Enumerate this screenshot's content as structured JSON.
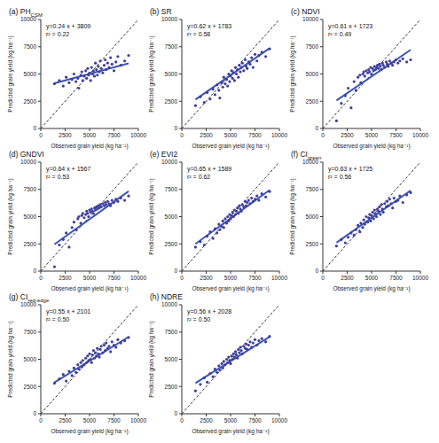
{
  "chart_data": [
    {
      "type": "scatter",
      "title": "(a) PH",
      "title_subscript": "CSM",
      "x_label": "Observed grain yield (kg ha⁻¹)",
      "y_label": "Predicted grain yield (kg ha⁻¹)",
      "annotations": [
        "y=0.24 x + 3809",
        "r² = 0.22"
      ],
      "fit": {
        "slope": 0.24,
        "intercept": 3809
      },
      "color": "#3f3f9e",
      "marker": "circle",
      "grid": false,
      "xlim": [
        0,
        10000
      ],
      "ylim": [
        0,
        10000
      ],
      "xticks": [
        0,
        2500,
        5000,
        7500,
        10000
      ],
      "yticks": [
        0,
        2500,
        5000,
        7500,
        10000
      ],
      "x": [
        1400,
        1900,
        2300,
        2600,
        2900,
        3200,
        3400,
        3600,
        3800,
        3900,
        4100,
        4200,
        4300,
        4450,
        4600,
        4700,
        4800,
        4900,
        5000,
        5100,
        5200,
        5300,
        5400,
        5500,
        5600,
        5700,
        5800,
        5900,
        6000,
        6100,
        6200,
        6350,
        6500,
        6600,
        6700,
        6850,
        7000,
        7150,
        7300,
        7500,
        7700,
        7900,
        8200,
        8600,
        9000
      ],
      "values": [
        4100,
        4400,
        3900,
        4700,
        4200,
        4500,
        5000,
        4300,
        4600,
        3700,
        4900,
        5200,
        4400,
        4800,
        5300,
        4600,
        5500,
        4900,
        5100,
        4400,
        5600,
        5000,
        5300,
        4800,
        6000,
        5400,
        4900,
        5700,
        5200,
        6200,
        5500,
        5100,
        5800,
        6300,
        5400,
        6000,
        5600,
        6500,
        5900,
        5300,
        6100,
        6600,
        5800,
        6200,
        6700
      ]
    },
    {
      "type": "scatter",
      "title": "(b) SR",
      "x_label": "Observed grain yield (kg ha⁻¹)",
      "y_label": "Predicted grain yield (kg ha⁻¹)",
      "annotations": [
        "y=0.62 x + 1783",
        "r² = 0.58"
      ],
      "fit": {
        "slope": 0.62,
        "intercept": 1783
      },
      "color": "#3f3f9e",
      "marker": "circle",
      "grid": false,
      "xlim": [
        0,
        10000
      ],
      "ylim": [
        0,
        10000
      ],
      "xticks": [
        0,
        2500,
        5000,
        7500,
        10000
      ],
      "yticks": [
        0,
        2500,
        5000,
        7500,
        10000
      ],
      "x": [
        1400,
        1900,
        2300,
        2600,
        2900,
        3200,
        3400,
        3600,
        3800,
        3900,
        4100,
        4200,
        4300,
        4450,
        4600,
        4700,
        4800,
        4900,
        5000,
        5100,
        5200,
        5300,
        5400,
        5500,
        5600,
        5700,
        5800,
        5900,
        6000,
        6100,
        6200,
        6350,
        6500,
        6600,
        6700,
        6850,
        7000,
        7150,
        7300,
        7500,
        7700,
        7900,
        8200,
        8600,
        9000
      ],
      "values": [
        2100,
        2900,
        2400,
        3300,
        2700,
        3600,
        3100,
        4000,
        3500,
        2800,
        4200,
        3800,
        4700,
        4100,
        4500,
        3900,
        5000,
        4300,
        4800,
        5300,
        4600,
        5100,
        4400,
        5600,
        5000,
        5400,
        4700,
        5800,
        5200,
        5600,
        6000,
        5300,
        6300,
        5700,
        5500,
        6100,
        5900,
        6500,
        5600,
        6800,
        6200,
        6700,
        7000,
        6600,
        7300
      ]
    },
    {
      "type": "scatter",
      "title": "(c) NDVI",
      "x_label": "Observed grain yield (kg ha⁻¹)",
      "y_label": "Predicted grain yield (kg ha⁻¹)",
      "annotations": [
        "y=0.61 x + 1723",
        "r² = 0.49"
      ],
      "fit": {
        "slope": 0.61,
        "intercept": 1723
      },
      "color": "#3f3f9e",
      "marker": "circle",
      "grid": false,
      "xlim": [
        0,
        10000
      ],
      "ylim": [
        0,
        10000
      ],
      "xticks": [
        0,
        2500,
        5000,
        7500,
        10000
      ],
      "yticks": [
        0,
        2500,
        5000,
        7500,
        10000
      ],
      "x": [
        1400,
        1900,
        2300,
        2600,
        2900,
        3200,
        3400,
        3600,
        3800,
        3900,
        4100,
        4200,
        4300,
        4450,
        4600,
        4700,
        4800,
        4900,
        5000,
        5100,
        5200,
        5300,
        5400,
        5500,
        5600,
        5700,
        5800,
        5900,
        6000,
        6100,
        6200,
        6350,
        6500,
        6600,
        6700,
        6850,
        7000,
        7150,
        7300,
        7500,
        7700,
        7900,
        8200,
        8600,
        9000
      ],
      "values": [
        700,
        2300,
        3000,
        3700,
        1900,
        4300,
        3500,
        4700,
        4900,
        4200,
        5000,
        5200,
        4800,
        5300,
        5100,
        5400,
        5200,
        5600,
        5000,
        5500,
        5300,
        5700,
        5400,
        5600,
        5800,
        5500,
        5900,
        5700,
        5400,
        6000,
        5800,
        5600,
        6100,
        5900,
        5700,
        6200,
        6000,
        5800,
        6100,
        6300,
        6000,
        6200,
        6400,
        6100,
        6300
      ]
    },
    {
      "type": "scatter",
      "title": "(d) GNDVI",
      "x_label": "Observed grain yield (kg ha⁻¹)",
      "y_label": "Predicted grain yield (kg ha⁻¹)",
      "annotations": [
        "y=0.64 x + 1567",
        "r² = 0.53"
      ],
      "fit": {
        "slope": 0.64,
        "intercept": 1567
      },
      "color": "#3f3f9e",
      "marker": "circle",
      "grid": false,
      "xlim": [
        0,
        10000
      ],
      "ylim": [
        0,
        10000
      ],
      "xticks": [
        0,
        2500,
        5000,
        7500,
        10000
      ],
      "yticks": [
        0,
        2500,
        5000,
        7500,
        10000
      ],
      "x": [
        1400,
        1900,
        2300,
        2600,
        2900,
        3200,
        3400,
        3600,
        3800,
        3900,
        4100,
        4200,
        4300,
        4450,
        4600,
        4700,
        4800,
        4900,
        5000,
        5100,
        5200,
        5300,
        5400,
        5500,
        5600,
        5700,
        5800,
        5900,
        6000,
        6100,
        6200,
        6350,
        6500,
        6600,
        6700,
        6850,
        7000,
        7150,
        7300,
        7500,
        7700,
        7900,
        8200,
        8600,
        9000
      ],
      "values": [
        400,
        2400,
        2900,
        3500,
        2200,
        4000,
        4500,
        3800,
        4800,
        5000,
        4400,
        5100,
        5300,
        4900,
        5200,
        5500,
        5300,
        5000,
        5600,
        5400,
        5700,
        5500,
        5300,
        5800,
        5600,
        5900,
        5700,
        6000,
        5800,
        6100,
        5900,
        6200,
        6000,
        6300,
        6100,
        6400,
        6200,
        6000,
        6500,
        6300,
        6600,
        6400,
        6700,
        6500,
        6900
      ]
    },
    {
      "type": "scatter",
      "title": "(e) EVI2",
      "x_label": "Observed grain yield (kg ha⁻¹)",
      "y_label": "Predicted grain yield (kg ha⁻¹)",
      "annotations": [
        "y=0.65 x + 1589",
        "r² = 0.62"
      ],
      "fit": {
        "slope": 0.65,
        "intercept": 1589
      },
      "color": "#3f3f9e",
      "marker": "circle",
      "grid": false,
      "xlim": [
        0,
        10000
      ],
      "ylim": [
        0,
        10000
      ],
      "xticks": [
        0,
        2500,
        5000,
        7500,
        10000
      ],
      "yticks": [
        0,
        2500,
        5000,
        7500,
        10000
      ],
      "x": [
        1400,
        1900,
        2300,
        2600,
        2900,
        3200,
        3400,
        3600,
        3800,
        3900,
        4100,
        4200,
        4300,
        4450,
        4600,
        4700,
        4800,
        4900,
        5000,
        5100,
        5200,
        5300,
        5400,
        5500,
        5600,
        5700,
        5800,
        5900,
        6000,
        6100,
        6200,
        6350,
        6500,
        6600,
        6700,
        6850,
        7000,
        7150,
        7300,
        7500,
        7700,
        7900,
        8200,
        8600,
        9000
      ],
      "values": [
        2200,
        2700,
        2400,
        3200,
        3600,
        3000,
        3900,
        3500,
        4300,
        3800,
        4100,
        4600,
        4000,
        4800,
        4400,
        5000,
        4600,
        5200,
        4800,
        5100,
        5400,
        5000,
        5600,
        5200,
        5500,
        5800,
        5300,
        6000,
        5700,
        5500,
        6100,
        5900,
        6400,
        6000,
        6300,
        6500,
        6200,
        6700,
        6400,
        6600,
        6900,
        6500,
        7100,
        6800,
        7300
      ]
    },
    {
      "type": "scatter",
      "title": "(f) CI",
      "title_subscript": "green",
      "x_label": "Observed grain yield (kg ha⁻¹)",
      "y_label": "Predicted grain yield (kg ha⁻¹)",
      "annotations": [
        "y=0.63 x + 1725",
        "r² = 0.56"
      ],
      "fit": {
        "slope": 0.63,
        "intercept": 1725
      },
      "color": "#3f3f9e",
      "marker": "circle",
      "grid": false,
      "xlim": [
        0,
        10000
      ],
      "ylim": [
        0,
        10000
      ],
      "xticks": [
        0,
        2500,
        5000,
        7500,
        10000
      ],
      "yticks": [
        0,
        2500,
        5000,
        7500,
        10000
      ],
      "x": [
        1400,
        1900,
        2300,
        2600,
        2900,
        3200,
        3400,
        3600,
        3800,
        3900,
        4100,
        4200,
        4300,
        4450,
        4600,
        4700,
        4800,
        4900,
        5000,
        5100,
        5200,
        5300,
        5400,
        5500,
        5600,
        5700,
        5800,
        5900,
        6000,
        6100,
        6200,
        6350,
        6500,
        6600,
        6700,
        6850,
        7000,
        7150,
        7300,
        7500,
        7700,
        7900,
        8200,
        8600,
        9000
      ],
      "values": [
        2300,
        2900,
        2600,
        3100,
        3500,
        3300,
        3800,
        4200,
        3600,
        4400,
        4000,
        4700,
        4300,
        5000,
        4500,
        4900,
        5200,
        4600,
        5100,
        5400,
        4800,
        5600,
        5300,
        5000,
        5700,
        5500,
        5900,
        5200,
        6100,
        5700,
        5400,
        6200,
        5900,
        6400,
        6000,
        6600,
        6200,
        5800,
        6700,
        6400,
        6500,
        6900,
        6300,
        7000,
        7200
      ]
    },
    {
      "type": "scatter",
      "title": "(g) CI",
      "title_subscript": "red-edge",
      "x_label": "Observed grain yield (kg ha⁻¹)",
      "y_label": "Predicted grain yield (kg ha⁻¹)",
      "annotations": [
        "y=0.55 x + 2101",
        "r² = 0.50"
      ],
      "fit": {
        "slope": 0.55,
        "intercept": 2101
      },
      "color": "#3f3f9e",
      "marker": "circle",
      "grid": false,
      "xlim": [
        0,
        10000
      ],
      "ylim": [
        0,
        10000
      ],
      "xticks": [
        0,
        2500,
        5000,
        7500,
        10000
      ],
      "yticks": [
        0,
        2500,
        5000,
        7500,
        10000
      ],
      "x": [
        1400,
        1900,
        2300,
        2600,
        2900,
        3200,
        3400,
        3600,
        3800,
        3900,
        4100,
        4200,
        4300,
        4450,
        4600,
        4700,
        4800,
        4900,
        5000,
        5100,
        5200,
        5300,
        5400,
        5500,
        5600,
        5700,
        5800,
        5900,
        6000,
        6100,
        6200,
        6350,
        6500,
        6600,
        6700,
        6850,
        7000,
        7150,
        7300,
        7500,
        7700,
        7900,
        8200,
        8600,
        9000
      ],
      "values": [
        2800,
        3200,
        3600,
        3000,
        3900,
        3500,
        4200,
        3800,
        4500,
        4100,
        4700,
        4300,
        4900,
        4500,
        5100,
        4700,
        5300,
        4900,
        5500,
        5000,
        4700,
        5400,
        5800,
        5100,
        5600,
        5300,
        6000,
        5500,
        5200,
        5900,
        6200,
        5600,
        6300,
        5800,
        6500,
        6000,
        6200,
        5700,
        6600,
        6300,
        6100,
        6800,
        6500,
        6700,
        7000
      ]
    },
    {
      "type": "scatter",
      "title": "(h) NDRE",
      "x_label": "Observed grain yield (kg ha⁻¹)",
      "y_label": "Predicted grain yield (kg ha⁻¹)",
      "annotations": [
        "y=0.56 x + 2028",
        "r² = 0.50"
      ],
      "fit": {
        "slope": 0.56,
        "intercept": 2028
      },
      "color": "#3f3f9e",
      "marker": "circle",
      "grid": false,
      "xlim": [
        0,
        10000
      ],
      "ylim": [
        0,
        10000
      ],
      "xticks": [
        0,
        2500,
        5000,
        7500,
        10000
      ],
      "yticks": [
        0,
        2500,
        5000,
        7500,
        10000
      ],
      "x": [
        1400,
        1900,
        2300,
        2600,
        2900,
        3200,
        3400,
        3600,
        3800,
        3900,
        4100,
        4200,
        4300,
        4450,
        4600,
        4700,
        4800,
        4900,
        5000,
        5100,
        5200,
        5300,
        5400,
        5500,
        5600,
        5700,
        5800,
        5900,
        6000,
        6100,
        6200,
        6350,
        6500,
        6600,
        6700,
        6850,
        7000,
        7150,
        7300,
        7500,
        7700,
        7900,
        8200,
        8600,
        9000
      ],
      "values": [
        2100,
        2700,
        3300,
        2900,
        3700,
        3400,
        4100,
        3800,
        4400,
        4000,
        4600,
        4200,
        4800,
        4500,
        5000,
        4700,
        5200,
        4900,
        4600,
        5300,
        5000,
        5500,
        5200,
        5700,
        5400,
        5100,
        5900,
        5600,
        6100,
        5800,
        5500,
        6200,
        6000,
        6400,
        5900,
        6300,
        6600,
        6100,
        6500,
        6800,
        6300,
        6700,
        6900,
        6600,
        7100
      ]
    }
  ]
}
